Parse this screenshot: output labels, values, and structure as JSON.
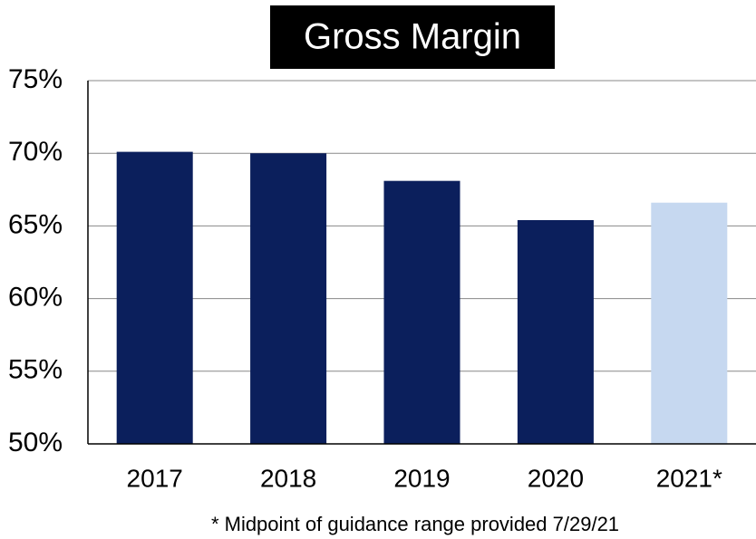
{
  "chart_data": {
    "type": "bar",
    "title": "Gross Margin",
    "categories": [
      "2017",
      "2018",
      "2019",
      "2020",
      "2021*"
    ],
    "values": [
      70.1,
      70.0,
      68.1,
      65.4,
      66.6
    ],
    "colors": [
      "#0b1f5c",
      "#0b1f5c",
      "#0b1f5c",
      "#0b1f5c",
      "#c6d8f0"
    ],
    "ylim": [
      50,
      75
    ],
    "yticks": [
      {
        "value": 50,
        "label": "50%"
      },
      {
        "value": 55,
        "label": "55%"
      },
      {
        "value": 60,
        "label": "60%"
      },
      {
        "value": 65,
        "label": "65%"
      },
      {
        "value": 70,
        "label": "70%"
      },
      {
        "value": 75,
        "label": "75%"
      }
    ],
    "grid": true,
    "annotation": "* Midpoint of guidance range provided 7/29/21"
  }
}
